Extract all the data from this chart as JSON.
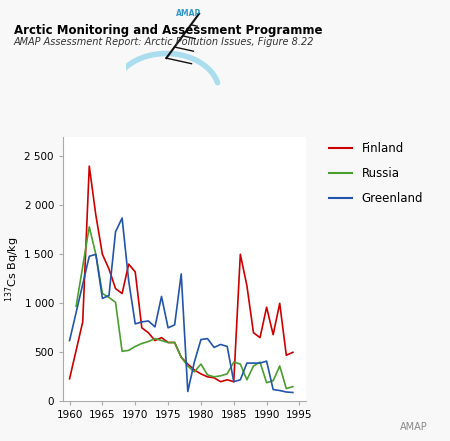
{
  "title1": "Arctic Monitoring and Assessment Programme",
  "title2": "AMAP Assessment Report: Arctic Pollution Issues, Figure 8.22",
  "ylabel": "$^{137}$Cs Bq/kg",
  "ylim": [
    0,
    2700
  ],
  "yticks": [
    0,
    500,
    1000,
    1500,
    2000,
    2500
  ],
  "ytick_labels": [
    "0",
    "500",
    "1 000",
    "1 500",
    "2 000",
    "2 500"
  ],
  "xlim": [
    1959,
    1996
  ],
  "xticks": [
    1960,
    1965,
    1970,
    1975,
    1980,
    1985,
    1990,
    1995
  ],
  "finland_color": "#cc0000",
  "russia_color": "#4a9e2f",
  "greenland_color": "#2255aa",
  "finland_x": [
    1960,
    1962,
    1963,
    1964,
    1965,
    1966,
    1967,
    1968,
    1969,
    1970,
    1971,
    1972,
    1973,
    1974,
    1975,
    1976,
    1977,
    1978,
    1979,
    1980,
    1981,
    1982,
    1983,
    1984,
    1985,
    1986,
    1987,
    1988,
    1989,
    1990,
    1991,
    1992,
    1993,
    1994
  ],
  "finland_y": [
    230,
    810,
    2400,
    1900,
    1500,
    1350,
    1150,
    1100,
    1400,
    1320,
    750,
    700,
    620,
    650,
    600,
    600,
    450,
    380,
    320,
    280,
    250,
    240,
    200,
    220,
    200,
    1500,
    1180,
    700,
    650,
    960,
    680,
    1000,
    470,
    500
  ],
  "russia_x": [
    1961,
    1963,
    1964,
    1965,
    1966,
    1967,
    1968,
    1969,
    1970,
    1971,
    1972,
    1973,
    1974,
    1975,
    1976,
    1977,
    1978,
    1979,
    1980,
    1981,
    1982,
    1983,
    1984,
    1985,
    1986,
    1987,
    1988,
    1989,
    1990,
    1991,
    1992,
    1993,
    1994
  ],
  "russia_y": [
    970,
    1780,
    1500,
    1100,
    1060,
    1010,
    510,
    520,
    560,
    590,
    610,
    640,
    620,
    600,
    600,
    450,
    360,
    300,
    380,
    270,
    250,
    260,
    280,
    400,
    380,
    220,
    360,
    400,
    190,
    210,
    360,
    130,
    150
  ],
  "greenland_x": [
    1960,
    1963,
    1964,
    1965,
    1966,
    1967,
    1968,
    1969,
    1970,
    1971,
    1972,
    1973,
    1974,
    1975,
    1976,
    1977,
    1978,
    1979,
    1980,
    1981,
    1982,
    1983,
    1984,
    1985,
    1986,
    1987,
    1988,
    1989,
    1990,
    1991,
    1992,
    1993,
    1994
  ],
  "greenland_y": [
    620,
    1480,
    1500,
    1050,
    1080,
    1730,
    1870,
    1230,
    790,
    810,
    820,
    760,
    1070,
    750,
    780,
    1300,
    100,
    400,
    630,
    640,
    550,
    580,
    560,
    200,
    220,
    390,
    390,
    390,
    410,
    120,
    110,
    95,
    90
  ],
  "background_color": "#f8f8f8",
  "plot_bg": "#ffffff",
  "legend_finland": "Finland",
  "legend_russia": "Russia",
  "legend_greenland": "Greenland",
  "logo_arc_color": "#aaddee",
  "logo_text_color": "#3399cc",
  "watermark_color": "#888888",
  "spine_color": "#aaaaaa",
  "tick_fontsize": 7.5,
  "title1_fontsize": 8.5,
  "title2_fontsize": 7.0,
  "ylabel_fontsize": 8.0,
  "legend_fontsize": 8.5
}
